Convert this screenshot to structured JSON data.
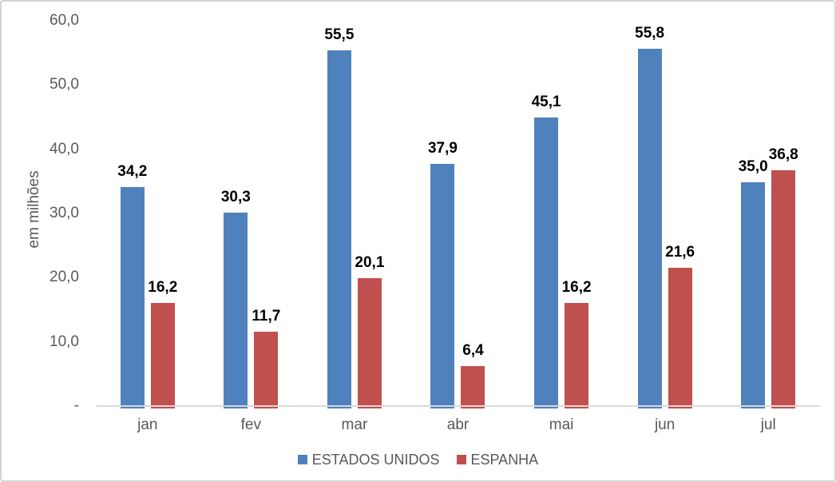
{
  "chart_data": {
    "type": "bar",
    "categories": [
      "jan",
      "fev",
      "mar",
      "abr",
      "mai",
      "jun",
      "jul"
    ],
    "series": [
      {
        "name": "ESTADOS UNIDOS",
        "color": "#4F81BD",
        "values": [
          34.2,
          30.3,
          55.5,
          37.9,
          45.1,
          55.8,
          35.0
        ],
        "labels": [
          "34,2",
          "30,3",
          "55,5",
          "37,9",
          "45,1",
          "55,8",
          "35,0"
        ]
      },
      {
        "name": "ESPANHA",
        "color": "#C0504D",
        "values": [
          16.2,
          11.7,
          20.1,
          6.4,
          16.2,
          21.6,
          36.8
        ],
        "labels": [
          "16,2",
          "11,7",
          "20,1",
          "6,4",
          "16,2",
          "21,6",
          "36,8"
        ]
      }
    ],
    "title": "",
    "xlabel": "",
    "ylabel": "em milhões",
    "ylim": [
      0,
      60
    ],
    "yticks": {
      "values": [
        60,
        50,
        40,
        30,
        20,
        10,
        0
      ],
      "labels": [
        "60,0",
        "50,0",
        "40,0",
        "30,0",
        "20,0",
        "10,0",
        "-"
      ]
    },
    "grid": false,
    "legend_position": "bottom",
    "data_labels": true
  },
  "colors": {
    "background": "#FFFFFF",
    "frame_border": "#D4D4D4",
    "axis_line": "#D9D9D9",
    "tick_text": "#595959",
    "data_label_text": "#000000"
  }
}
